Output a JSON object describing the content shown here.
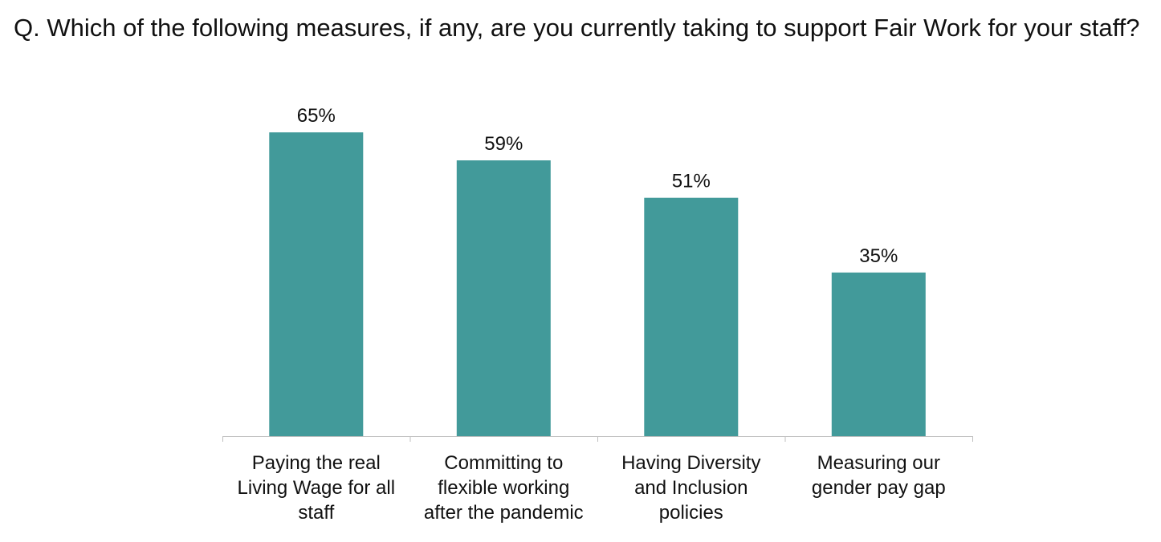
{
  "chart_data": {
    "type": "bar",
    "title": "Q. Which of the following measures, if any, are you currently taking to support Fair Work for your staff?",
    "categories": [
      [
        "Paying the real",
        "Living Wage for all",
        "staff"
      ],
      [
        "Committing to",
        "flexible working",
        "after the pandemic"
      ],
      [
        "Having Diversity",
        "and Inclusion",
        "policies"
      ],
      [
        "Measuring our",
        "gender pay gap"
      ]
    ],
    "values": [
      65,
      59,
      51,
      35
    ],
    "value_labels": [
      "65%",
      "59%",
      "51%",
      "35%"
    ],
    "ylim": [
      0,
      100
    ],
    "grid": false,
    "legend": "none",
    "bar_color": "#429A9A",
    "axis_color": "#BFBFBF"
  }
}
